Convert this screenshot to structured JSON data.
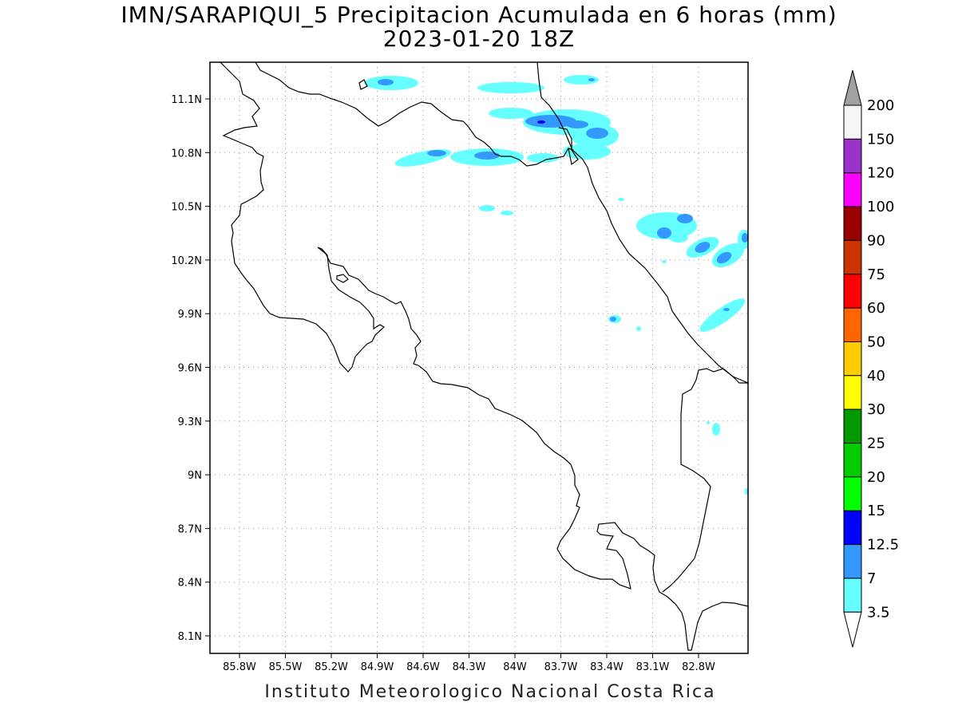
{
  "title": {
    "line1": "IMN/SARAPIQUI_5 Precipitacion Acumulada en 6 horas (mm)",
    "line2": "2023-01-20 18Z"
  },
  "footer": "Instituto Meteorologico Nacional Costa Rica",
  "map": {
    "lon_ticks": [
      "85.8W",
      "85.5W",
      "85.2W",
      "84.9W",
      "84.6W",
      "84.3W",
      "84W",
      "83.7W",
      "83.4W",
      "83.1W",
      "82.8W"
    ],
    "lat_ticks": [
      "11.1N",
      "10.8N",
      "10.5N",
      "10.2N",
      "9.9N",
      "9.6N",
      "9.3N",
      "9N",
      "8.7N",
      "8.4N",
      "8.1N"
    ],
    "grid": "dotted"
  },
  "colorbar": {
    "labels": [
      "200",
      "150",
      "120",
      "100",
      "90",
      "75",
      "60",
      "50",
      "40",
      "30",
      "25",
      "20",
      "15",
      "12.5",
      "7",
      "3.5"
    ],
    "colors": [
      "#a0a0a0",
      "#f5f5f5",
      "#9933cc",
      "#ff00ff",
      "#990000",
      "#cc3300",
      "#ff0000",
      "#ff6600",
      "#ffcc00",
      "#ffff00",
      "#009900",
      "#00cc00",
      "#00ff00",
      "#0000ff",
      "#3399ff",
      "#66ffff",
      "#ffffff"
    ]
  },
  "colors": {
    "light_cyan": "#66ffff",
    "mid_blue": "#3399ff",
    "dark_blue": "#0000ff"
  }
}
